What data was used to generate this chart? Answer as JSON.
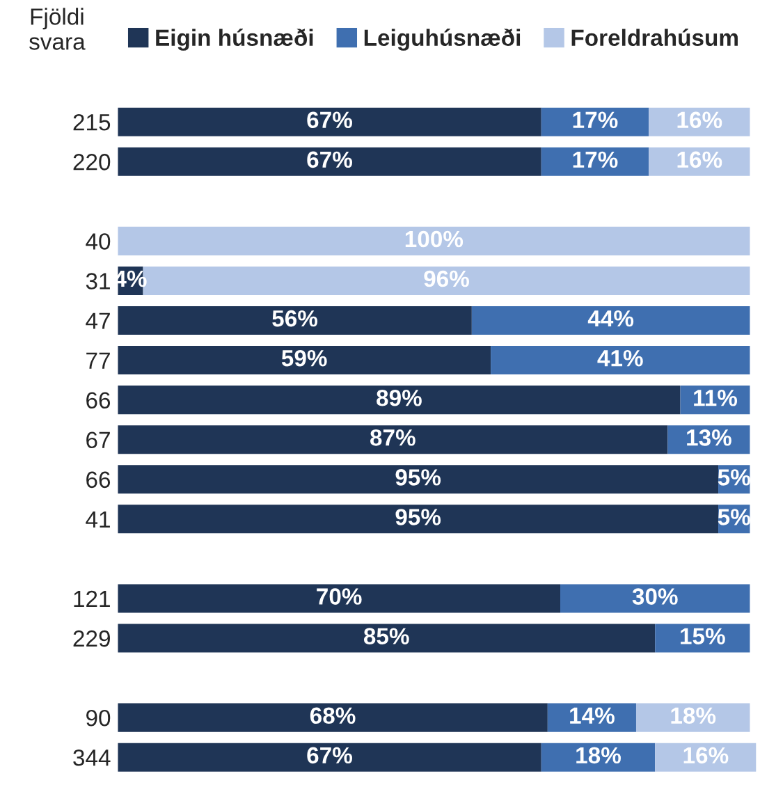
{
  "chart_data": {
    "type": "bar",
    "orientation": "horizontal",
    "stacked": true,
    "ylabel": "Fjöldi\nsvara",
    "legend": "top",
    "grid": false,
    "tick_labels": "y",
    "xlim": [
      0,
      101
    ],
    "categories": [
      "215",
      "220",
      null,
      "40",
      "31",
      "47",
      "77",
      "66",
      "67",
      "66",
      "41",
      null,
      "121",
      "229",
      null,
      "90",
      "344"
    ],
    "series": [
      {
        "name": "Eigin húsnæði",
        "color": "#1f3556",
        "values": [
          67,
          67,
          null,
          null,
          4,
          56,
          59,
          89,
          87,
          95,
          95,
          null,
          70,
          85,
          null,
          68,
          67
        ],
        "value_labels": [
          "67%",
          "67%",
          null,
          null,
          "4%",
          "56%",
          "59%",
          "89%",
          "87%",
          "95%",
          "95%",
          null,
          "70%",
          "85%",
          null,
          "68%",
          "67%"
        ]
      },
      {
        "name": "Leiguhúsnæði",
        "color": "#3f6fb0",
        "values": [
          17,
          17,
          null,
          null,
          null,
          44,
          41,
          11,
          13,
          5,
          5,
          null,
          30,
          15,
          null,
          14,
          18
        ],
        "value_labels": [
          "17%",
          "17%",
          null,
          null,
          null,
          "44%",
          "41%",
          "11%",
          "13%",
          "5%",
          "5%",
          null,
          "30%",
          "15%",
          null,
          "14%",
          "18%"
        ]
      },
      {
        "name": "Foreldrahúsum",
        "color": "#b4c7e7",
        "values": [
          16,
          16,
          null,
          100,
          96,
          null,
          null,
          null,
          null,
          null,
          null,
          null,
          null,
          null,
          null,
          18,
          16
        ],
        "value_labels": [
          "16%",
          "16%",
          null,
          "100%",
          "96%",
          null,
          null,
          null,
          null,
          null,
          null,
          null,
          null,
          null,
          null,
          "18%",
          "16%"
        ]
      }
    ]
  }
}
